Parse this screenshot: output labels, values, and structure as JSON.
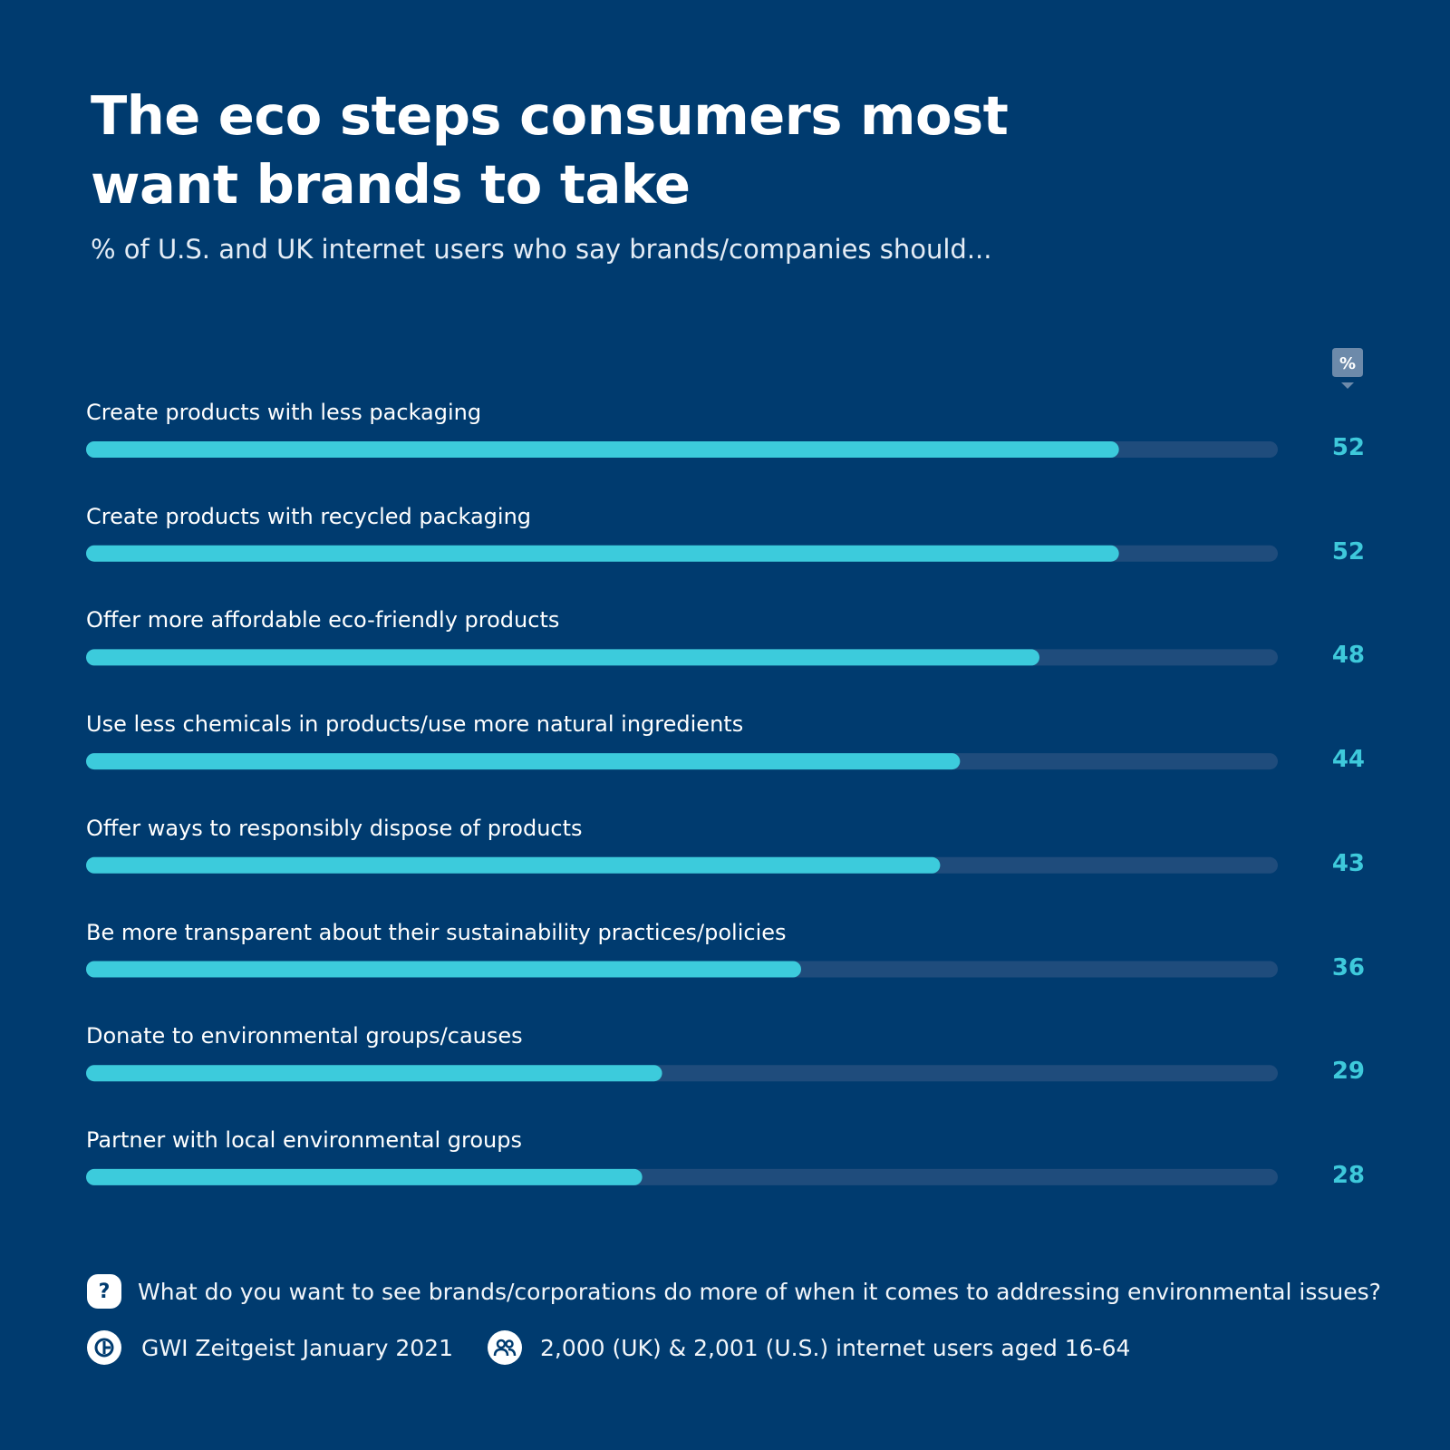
{
  "header": {
    "title": "The eco steps consumers most want brands to take",
    "subtitle": "% of U.S. and UK internet users who say brands/companies should..."
  },
  "unit_badge": {
    "text": "%",
    "icon": "percent-pin-icon"
  },
  "colors": {
    "background": "#003b6f",
    "bar_fill": "#3ccbdc",
    "bar_track": "#1f4c7c",
    "value_text": "#3ec9db"
  },
  "chart_data": {
    "type": "bar",
    "orientation": "horizontal",
    "title": "The eco steps consumers most want brands to take",
    "subtitle": "% of U.S. and UK internet users who say brands/companies should...",
    "unit": "%",
    "xlim": [
      0,
      60
    ],
    "grid": false,
    "categories": [
      "Create products with less packaging",
      "Create products with recycled packaging",
      "Offer more affordable eco-friendly products",
      "Use less chemicals in products/use more natural ingredients",
      "Offer ways to responsibly dispose of products",
      "Be more transparent about their sustainability practices/policies",
      "Donate to environmental groups/causes",
      "Partner with local environmental groups"
    ],
    "values": [
      52,
      52,
      48,
      44,
      43,
      36,
      29,
      28
    ]
  },
  "footer": {
    "question_icon": "question-icon",
    "question": "What do you want to see brands/corporations do more of when it comes to addressing environmental issues?",
    "source_icon": "gwi-logo-icon",
    "source": "GWI Zeitgeist January 2021",
    "sample_icon": "users-icon",
    "sample": "2,000 (UK) &  2,001 (U.S.) internet users aged 16-64"
  }
}
